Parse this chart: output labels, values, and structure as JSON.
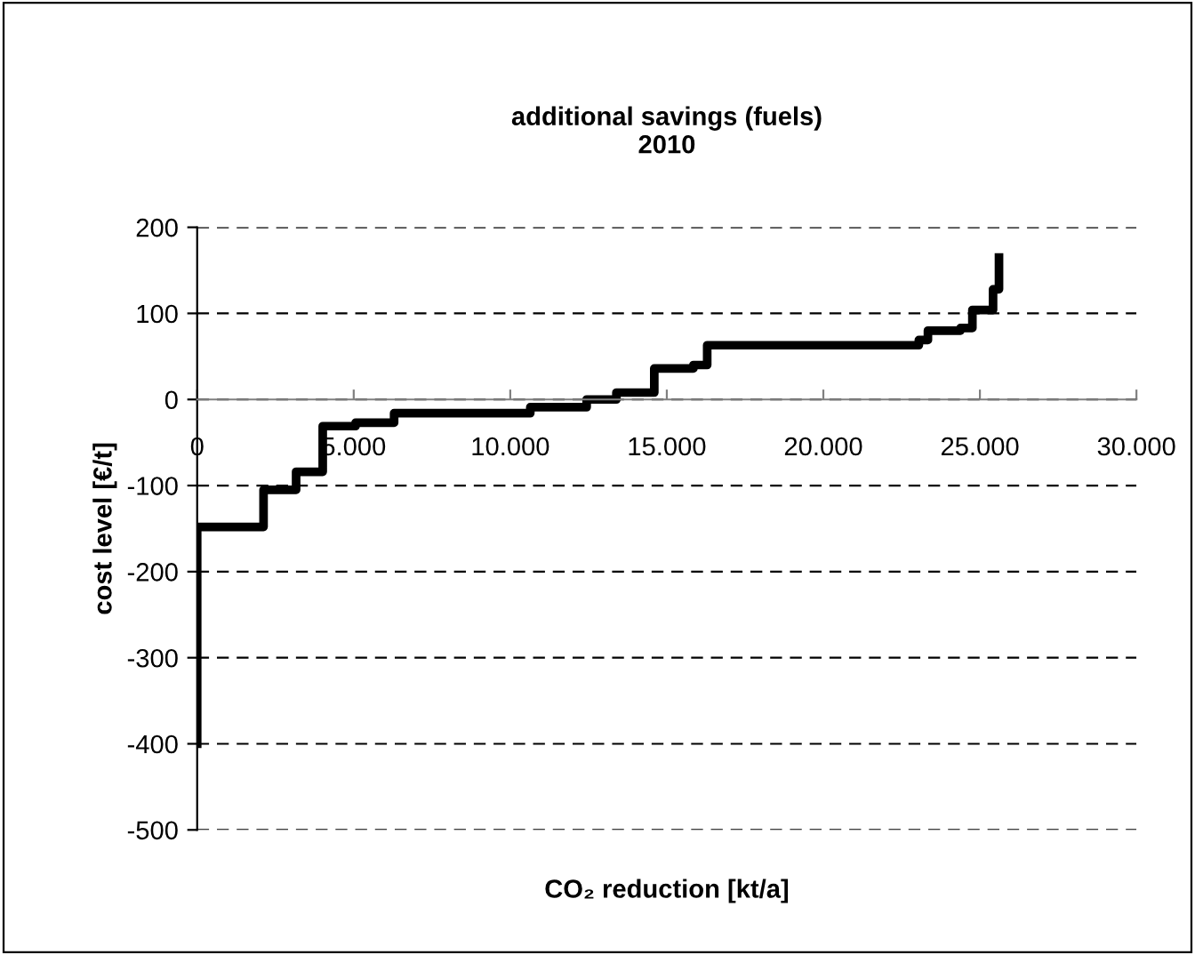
{
  "chart_data": {
    "type": "step",
    "title": "additional savings (fuels)\n2010",
    "xlabel": "CO₂ reduction [kt/a]",
    "ylabel": "cost level [€/t]",
    "x": [
      0,
      0,
      2120,
      3160,
      4010,
      5060,
      6290,
      10640,
      12440,
      13390,
      14600,
      15850,
      16290,
      22390,
      23050,
      23340,
      24380,
      24760,
      25420,
      25610
    ],
    "series": [
      {
        "color": "#000000",
        "values": [
          -400,
          -148,
          -105,
          -84,
          -31,
          -27,
          -16,
          -9,
          0,
          8,
          36,
          40,
          63,
          63,
          69,
          80,
          83,
          104,
          128,
          165
        ]
      }
    ],
    "xlim": [
      0,
      30000
    ],
    "ylim": [
      -500,
      200
    ],
    "xticks": [
      0,
      {
        "value": 5000,
        "label": "5.000"
      },
      {
        "value": 10000,
        "label": "10.000"
      },
      {
        "value": 15000,
        "label": "15.000"
      },
      {
        "value": 20000,
        "label": "20.000"
      },
      {
        "value": 25000,
        "label": "25.000"
      },
      {
        "value": 30000,
        "label": "30.000"
      }
    ],
    "yticks": [
      -500,
      -400,
      -300,
      -200,
      -100,
      0,
      100,
      200
    ],
    "grid": "y",
    "line_style": "solid",
    "marker": "none"
  }
}
